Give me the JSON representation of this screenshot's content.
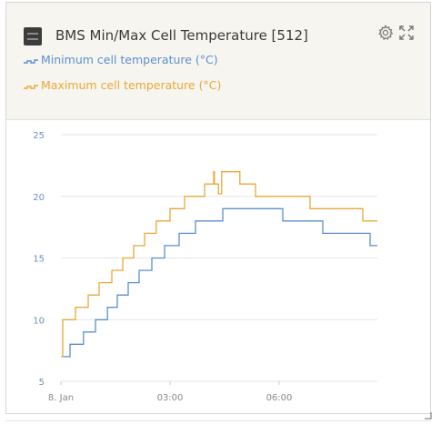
{
  "widget": {
    "title": "BMS Min/Max Cell Temperature [512]",
    "icons": [
      "battery-icon",
      "gear-icon",
      "expand-icon",
      "resize-handle-icon"
    ]
  },
  "legend": [
    {
      "label": "Minimum cell temperature (°C)",
      "color": "#5b8fd0"
    },
    {
      "label": "Maximum cell temperature (°C)",
      "color": "#eaa83a"
    }
  ],
  "chart_data": {
    "type": "line",
    "step": true,
    "x_unit": "hours since 8. Jan 00:00",
    "xlim": [
      0,
      8.7
    ],
    "ylim": [
      5,
      25
    ],
    "y_ticks": [
      "5",
      "10",
      "15",
      "20",
      "25"
    ],
    "x_ticks": [
      {
        "value": 0,
        "label": "8. Jan"
      },
      {
        "value": 3,
        "label": "03:00"
      },
      {
        "value": 6,
        "label": "06:00"
      }
    ],
    "grid": true,
    "legend_position": "top-left",
    "series": [
      {
        "name": "Minimum cell temperature (°C)",
        "color": "#5b8fd0",
        "points": [
          [
            0.03,
            7
          ],
          [
            0.25,
            8
          ],
          [
            0.62,
            9
          ],
          [
            0.95,
            10
          ],
          [
            1.28,
            11
          ],
          [
            1.55,
            12
          ],
          [
            1.85,
            13
          ],
          [
            2.15,
            14
          ],
          [
            2.5,
            15
          ],
          [
            2.85,
            16
          ],
          [
            3.25,
            17
          ],
          [
            3.7,
            18
          ],
          [
            4.45,
            19
          ],
          [
            6.1,
            18
          ],
          [
            7.2,
            17
          ],
          [
            8.5,
            16
          ],
          [
            8.7,
            16
          ]
        ]
      },
      {
        "name": "Maximum cell temperature (°C)",
        "color": "#eaa83a",
        "points": [
          [
            0,
            7
          ],
          [
            0.05,
            10
          ],
          [
            0.4,
            11
          ],
          [
            0.75,
            12
          ],
          [
            1.05,
            13
          ],
          [
            1.4,
            14
          ],
          [
            1.7,
            15
          ],
          [
            2.0,
            16
          ],
          [
            2.3,
            17
          ],
          [
            2.62,
            18
          ],
          [
            3.0,
            19
          ],
          [
            3.4,
            20
          ],
          [
            3.95,
            21
          ],
          [
            4.2,
            22
          ],
          [
            4.22,
            21
          ],
          [
            4.33,
            20.2
          ],
          [
            4.42,
            22
          ],
          [
            4.92,
            21
          ],
          [
            5.35,
            20
          ],
          [
            6.85,
            19
          ],
          [
            8.3,
            18
          ],
          [
            8.7,
            18
          ]
        ]
      }
    ]
  }
}
